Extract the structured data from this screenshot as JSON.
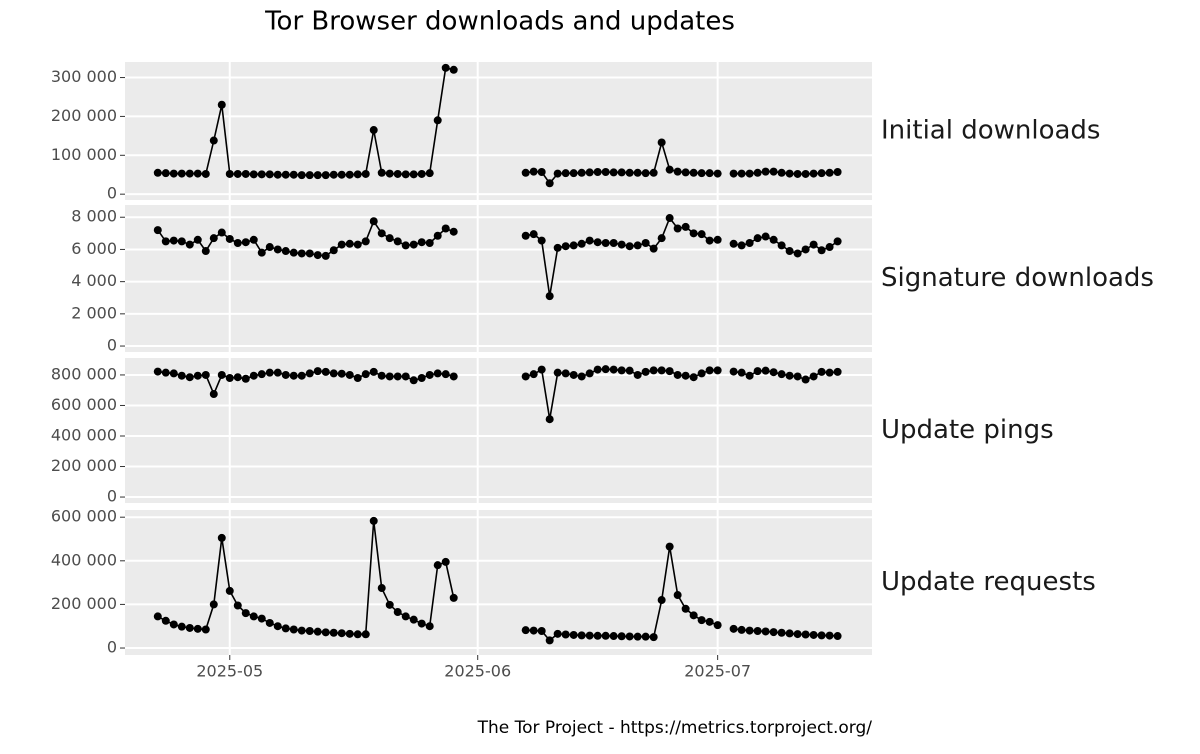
{
  "chart_data": {
    "type": "line",
    "title": "Tor Browser downloads and updates",
    "caption": "The Tor Project - https://metrics.torproject.org/",
    "color": "#000000",
    "grid": true,
    "x": [
      112,
      113,
      114,
      115,
      116,
      117,
      118,
      119,
      120,
      121,
      122,
      123,
      124,
      125,
      126,
      127,
      128,
      129,
      130,
      131,
      132,
      133,
      134,
      135,
      136,
      137,
      138,
      139,
      140,
      141,
      142,
      143,
      144,
      145,
      146,
      147,
      148,
      149,
      150,
      151,
      152,
      153,
      154,
      155,
      156,
      157,
      158,
      159,
      160,
      161,
      162,
      163,
      164,
      165,
      166,
      167,
      168,
      169,
      170,
      171,
      172,
      173,
      174,
      175,
      176,
      177,
      178,
      179,
      180,
      181,
      182,
      183,
      184,
      185,
      186,
      187,
      188,
      189,
      190,
      191,
      192,
      193,
      194,
      195,
      196,
      197
    ],
    "xlim": [
      107.9,
      201.3
    ],
    "xticks": [
      {
        "value": 121,
        "label": "2025-05"
      },
      {
        "value": 152,
        "label": "2025-06"
      },
      {
        "value": 182,
        "label": "2025-07"
      }
    ],
    "series": [
      {
        "name": "Initial downloads",
        "ylim": [
          -15000,
          340000
        ],
        "yticks": [
          0,
          {
            "value": 100000,
            "label": "100 000"
          },
          {
            "value": 200000,
            "label": "200 000"
          },
          {
            "value": 300000,
            "label": "300 000"
          }
        ],
        "values": [
          55000,
          54000,
          53000,
          53000,
          53000,
          53000,
          52000,
          138000,
          230000,
          52000,
          52000,
          52000,
          51000,
          51000,
          51000,
          50000,
          50000,
          50000,
          49000,
          49000,
          49000,
          49000,
          50000,
          50000,
          50000,
          51000,
          52000,
          165000,
          55000,
          53000,
          52000,
          51000,
          51000,
          52000,
          54000,
          190000,
          325000,
          320000,
          null,
          null,
          null,
          null,
          null,
          null,
          null,
          null,
          55000,
          58000,
          57000,
          28000,
          53000,
          54000,
          54000,
          55000,
          56000,
          57000,
          57000,
          56000,
          56000,
          55000,
          55000,
          54000,
          55000,
          133000,
          63000,
          58000,
          56000,
          55000,
          54000,
          54000,
          53000,
          null,
          53000,
          53000,
          53000,
          55000,
          58000,
          58000,
          55000,
          53000,
          52000,
          52000,
          53000,
          54000,
          55000,
          57000
        ]
      },
      {
        "name": "Signature downloads",
        "ylim": [
          -370,
          8760
        ],
        "yticks": [
          0,
          {
            "value": 2000,
            "label": "2 000"
          },
          {
            "value": 4000,
            "label": "4 000"
          },
          {
            "value": 6000,
            "label": "6 000"
          },
          {
            "value": 8000,
            "label": "8 000"
          }
        ],
        "values": [
          7200,
          6500,
          6550,
          6500,
          6300,
          6600,
          5900,
          6700,
          7050,
          6650,
          6400,
          6450,
          6600,
          5800,
          6150,
          6000,
          5900,
          5800,
          5750,
          5750,
          5650,
          5600,
          5950,
          6300,
          6350,
          6300,
          6500,
          7750,
          7000,
          6700,
          6500,
          6250,
          6300,
          6450,
          6400,
          6850,
          7300,
          7100,
          null,
          null,
          null,
          null,
          null,
          null,
          null,
          null,
          6850,
          6950,
          6550,
          3100,
          6100,
          6200,
          6250,
          6350,
          6550,
          6450,
          6400,
          6400,
          6300,
          6200,
          6250,
          6400,
          6050,
          6700,
          7950,
          7300,
          7400,
          7000,
          6950,
          6550,
          6600,
          null,
          6350,
          6250,
          6400,
          6700,
          6800,
          6600,
          6250,
          5900,
          5750,
          6000,
          6300,
          5950,
          6150,
          6500
        ]
      },
      {
        "name": "Update pings",
        "ylim": [
          -39000,
          911000
        ],
        "yticks": [
          0,
          {
            "value": 200000,
            "label": "200 000"
          },
          {
            "value": 400000,
            "label": "400 000"
          },
          {
            "value": 600000,
            "label": "600 000"
          },
          {
            "value": 800000,
            "label": "800 000"
          }
        ],
        "values": [
          822000,
          815000,
          810000,
          795000,
          785000,
          795000,
          800000,
          675000,
          800000,
          780000,
          785000,
          775000,
          795000,
          805000,
          815000,
          815000,
          800000,
          795000,
          795000,
          810000,
          825000,
          820000,
          810000,
          808000,
          800000,
          780000,
          805000,
          820000,
          795000,
          790000,
          790000,
          790000,
          765000,
          780000,
          800000,
          810000,
          805000,
          790000,
          null,
          null,
          null,
          null,
          null,
          null,
          null,
          null,
          790000,
          805000,
          835000,
          510000,
          815000,
          810000,
          800000,
          790000,
          810000,
          835000,
          838000,
          835000,
          830000,
          828000,
          800000,
          820000,
          830000,
          830000,
          825000,
          800000,
          795000,
          785000,
          810000,
          830000,
          830000,
          null,
          822000,
          815000,
          795000,
          825000,
          828000,
          818000,
          805000,
          795000,
          790000,
          770000,
          790000,
          820000,
          815000,
          820000
        ]
      },
      {
        "name": "Update requests",
        "ylim": [
          -32000,
          633000
        ],
        "yticks": [
          0,
          {
            "value": 200000,
            "label": "200 000"
          },
          {
            "value": 400000,
            "label": "400 000"
          },
          {
            "value": 600000,
            "label": "600 000"
          }
        ],
        "values": [
          145000,
          125000,
          108000,
          98000,
          92000,
          88000,
          85000,
          200000,
          505000,
          262000,
          195000,
          160000,
          145000,
          135000,
          115000,
          100000,
          90000,
          85000,
          80000,
          78000,
          75000,
          72000,
          70000,
          68000,
          65000,
          63000,
          63000,
          583000,
          275000,
          198000,
          165000,
          145000,
          130000,
          112000,
          100000,
          380000,
          395000,
          230000,
          null,
          null,
          null,
          null,
          null,
          null,
          null,
          null,
          82000,
          80000,
          78000,
          35000,
          65000,
          62000,
          60000,
          58000,
          57000,
          56000,
          56000,
          55000,
          54000,
          53000,
          52000,
          52000,
          50000,
          220000,
          465000,
          243000,
          180000,
          150000,
          128000,
          120000,
          105000,
          null,
          88000,
          83000,
          80000,
          78000,
          76000,
          73000,
          70000,
          67000,
          64000,
          62000,
          60000,
          58000,
          57000,
          55000
        ]
      }
    ]
  }
}
